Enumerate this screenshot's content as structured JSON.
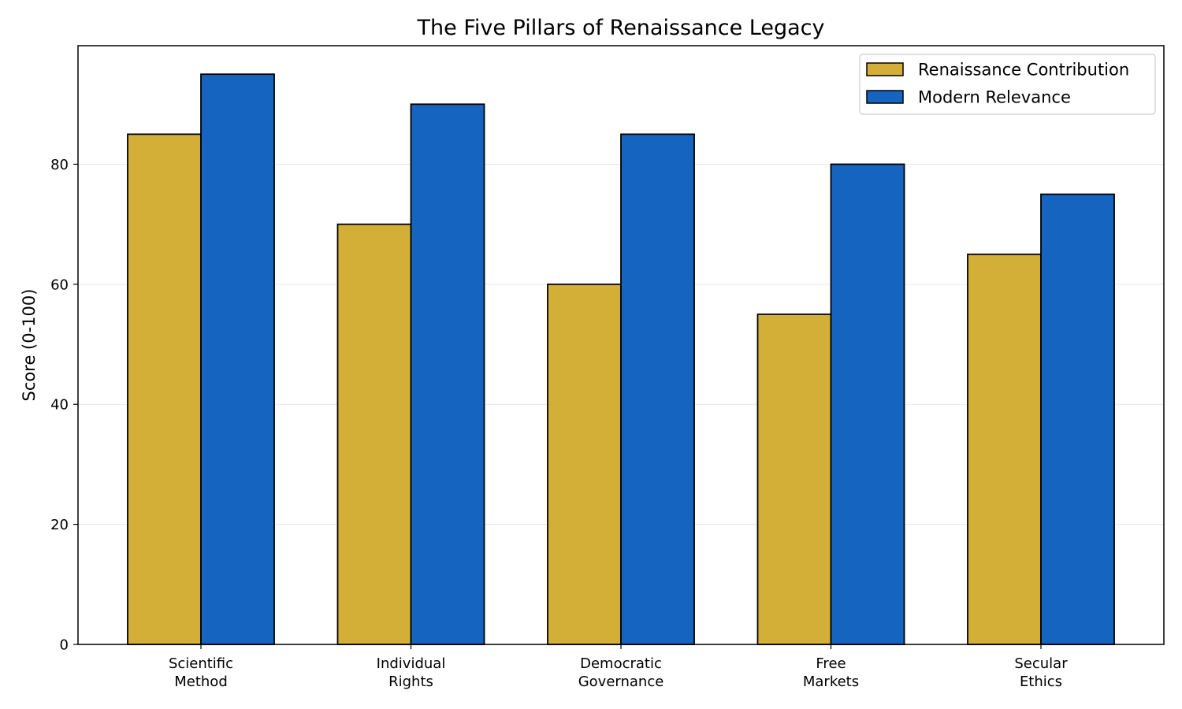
{
  "chart_data": {
    "type": "bar",
    "title": "The Five Pillars of Renaissance Legacy",
    "xlabel": "",
    "ylabel": "Score (0-100)",
    "categories": [
      [
        "Scientific",
        "Method"
      ],
      [
        "Individual",
        "Rights"
      ],
      [
        "Democratic",
        "Governance"
      ],
      [
        "Free",
        "Markets"
      ],
      [
        "Secular",
        "Ethics"
      ]
    ],
    "series": [
      {
        "name": "Renaissance Contribution",
        "color": "#D4AF37",
        "values": [
          85,
          70,
          60,
          55,
          65
        ]
      },
      {
        "name": "Modern Relevance",
        "color": "#1565C0",
        "values": [
          95,
          90,
          85,
          80,
          75
        ]
      }
    ],
    "ylim": [
      0,
      100
    ],
    "yticks": [
      "0",
      "20",
      "40",
      "60",
      "80"
    ],
    "grid": "y",
    "legend_position": "top-right",
    "bar_edge_color": "#000000"
  }
}
